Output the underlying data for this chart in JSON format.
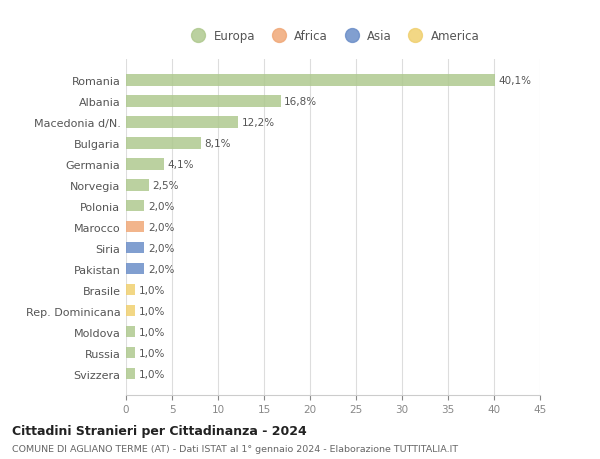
{
  "countries": [
    "Romania",
    "Albania",
    "Macedonia d/N.",
    "Bulgaria",
    "Germania",
    "Norvegia",
    "Polonia",
    "Marocco",
    "Siria",
    "Pakistan",
    "Brasile",
    "Rep. Dominicana",
    "Moldova",
    "Russia",
    "Svizzera"
  ],
  "values": [
    40.1,
    16.8,
    12.2,
    8.1,
    4.1,
    2.5,
    2.0,
    2.0,
    2.0,
    2.0,
    1.0,
    1.0,
    1.0,
    1.0,
    1.0
  ],
  "labels": [
    "40,1%",
    "16,8%",
    "12,2%",
    "8,1%",
    "4,1%",
    "2,5%",
    "2,0%",
    "2,0%",
    "2,0%",
    "2,0%",
    "1,0%",
    "1,0%",
    "1,0%",
    "1,0%",
    "1,0%"
  ],
  "continents": [
    "Europa",
    "Europa",
    "Europa",
    "Europa",
    "Europa",
    "Europa",
    "Europa",
    "Africa",
    "Asia",
    "Asia",
    "America",
    "America",
    "Europa",
    "Europa",
    "Europa"
  ],
  "colors": {
    "Europa": "#afc98f",
    "Africa": "#f0a878",
    "Asia": "#6b8ec8",
    "America": "#f0d070"
  },
  "xlim": [
    0,
    45
  ],
  "xticks": [
    0,
    5,
    10,
    15,
    20,
    25,
    30,
    35,
    40,
    45
  ],
  "title": "Cittadini Stranieri per Cittadinanza - 2024",
  "subtitle": "COMUNE DI AGLIANO TERME (AT) - Dati ISTAT al 1° gennaio 2024 - Elaborazione TUTTITALIA.IT",
  "background_color": "#ffffff",
  "grid_color": "#dddddd",
  "bar_height": 0.55,
  "legend_order": [
    "Europa",
    "Africa",
    "Asia",
    "America"
  ]
}
